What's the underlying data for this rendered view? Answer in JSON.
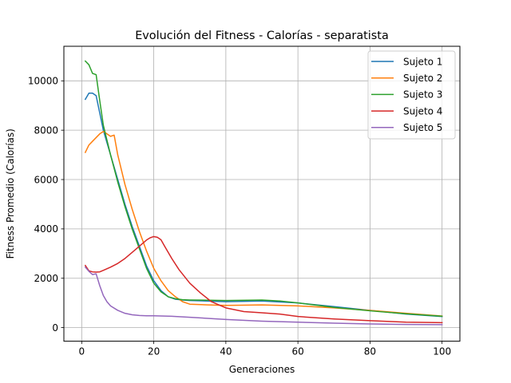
{
  "chart_data": {
    "type": "line",
    "title": "Evolución del Fitness - Calorías - separatista",
    "xlabel": "Generaciones",
    "ylabel": "Fitness Promedio (Calorías)",
    "xlim": [
      -4.95,
      104.95
    ],
    "ylim": [
      -550,
      11400
    ],
    "xticks": [
      0,
      20,
      40,
      60,
      80,
      100
    ],
    "yticks": [
      0,
      2000,
      4000,
      6000,
      8000,
      10000
    ],
    "grid": true,
    "legend_position": "top-right",
    "series": [
      {
        "name": "Sujeto 1",
        "color": "#1f77b4",
        "points": [
          [
            1,
            9250
          ],
          [
            2,
            9500
          ],
          [
            3,
            9500
          ],
          [
            4,
            9400
          ],
          [
            5,
            8700
          ],
          [
            6,
            8000
          ],
          [
            7,
            7500
          ],
          [
            8,
            7000
          ],
          [
            10,
            6000
          ],
          [
            12,
            5000
          ],
          [
            14,
            4100
          ],
          [
            16,
            3300
          ],
          [
            18,
            2500
          ],
          [
            20,
            1900
          ],
          [
            22,
            1500
          ],
          [
            24,
            1250
          ],
          [
            26,
            1150
          ],
          [
            28,
            1120
          ],
          [
            30,
            1100
          ],
          [
            40,
            1050
          ],
          [
            50,
            1080
          ],
          [
            60,
            1000
          ],
          [
            70,
            850
          ],
          [
            80,
            700
          ],
          [
            90,
            550
          ],
          [
            100,
            450
          ]
        ]
      },
      {
        "name": "Sujeto 2",
        "color": "#ff7f0e",
        "points": [
          [
            1,
            7100
          ],
          [
            2,
            7400
          ],
          [
            3,
            7550
          ],
          [
            4,
            7700
          ],
          [
            5,
            7850
          ],
          [
            6,
            7950
          ],
          [
            7,
            7850
          ],
          [
            8,
            7750
          ],
          [
            9,
            7800
          ],
          [
            10,
            7000
          ],
          [
            12,
            5800
          ],
          [
            14,
            4800
          ],
          [
            16,
            3900
          ],
          [
            18,
            3100
          ],
          [
            20,
            2400
          ],
          [
            22,
            1900
          ],
          [
            24,
            1500
          ],
          [
            26,
            1250
          ],
          [
            28,
            1050
          ],
          [
            30,
            950
          ],
          [
            35,
            920
          ],
          [
            40,
            900
          ],
          [
            50,
            920
          ],
          [
            60,
            880
          ],
          [
            70,
            800
          ],
          [
            80,
            700
          ],
          [
            90,
            580
          ],
          [
            100,
            470
          ]
        ]
      },
      {
        "name": "Sujeto 3",
        "color": "#2ca02c",
        "points": [
          [
            1,
            10800
          ],
          [
            2,
            10650
          ],
          [
            3,
            10300
          ],
          [
            4,
            10250
          ],
          [
            5,
            9200
          ],
          [
            6,
            8200
          ],
          [
            7,
            7600
          ],
          [
            8,
            7000
          ],
          [
            10,
            5900
          ],
          [
            12,
            4900
          ],
          [
            14,
            4000
          ],
          [
            16,
            3200
          ],
          [
            18,
            2400
          ],
          [
            20,
            1800
          ],
          [
            22,
            1450
          ],
          [
            24,
            1250
          ],
          [
            26,
            1170
          ],
          [
            28,
            1130
          ],
          [
            30,
            1120
          ],
          [
            40,
            1100
          ],
          [
            50,
            1120
          ],
          [
            55,
            1080
          ],
          [
            60,
            1000
          ],
          [
            70,
            820
          ],
          [
            80,
            680
          ],
          [
            90,
            560
          ],
          [
            100,
            460
          ]
        ]
      },
      {
        "name": "Sujeto 4",
        "color": "#d62728",
        "points": [
          [
            1,
            2520
          ],
          [
            2,
            2300
          ],
          [
            3,
            2260
          ],
          [
            4,
            2250
          ],
          [
            5,
            2260
          ],
          [
            6,
            2320
          ],
          [
            8,
            2450
          ],
          [
            10,
            2600
          ],
          [
            12,
            2800
          ],
          [
            14,
            3050
          ],
          [
            16,
            3300
          ],
          [
            18,
            3550
          ],
          [
            19,
            3640
          ],
          [
            20,
            3690
          ],
          [
            21,
            3660
          ],
          [
            22,
            3560
          ],
          [
            23,
            3300
          ],
          [
            25,
            2800
          ],
          [
            27,
            2350
          ],
          [
            30,
            1800
          ],
          [
            33,
            1400
          ],
          [
            36,
            1050
          ],
          [
            40,
            800
          ],
          [
            45,
            650
          ],
          [
            50,
            600
          ],
          [
            55,
            550
          ],
          [
            60,
            450
          ],
          [
            70,
            350
          ],
          [
            80,
            280
          ],
          [
            90,
            220
          ],
          [
            100,
            200
          ]
        ]
      },
      {
        "name": "Sujeto 5",
        "color": "#9467bd",
        "points": [
          [
            1,
            2450
          ],
          [
            2,
            2280
          ],
          [
            3,
            2150
          ],
          [
            4,
            2180
          ],
          [
            5,
            1700
          ],
          [
            6,
            1300
          ],
          [
            7,
            1050
          ],
          [
            8,
            880
          ],
          [
            10,
            700
          ],
          [
            12,
            580
          ],
          [
            14,
            520
          ],
          [
            16,
            490
          ],
          [
            18,
            480
          ],
          [
            20,
            480
          ],
          [
            25,
            460
          ],
          [
            30,
            420
          ],
          [
            40,
            330
          ],
          [
            50,
            260
          ],
          [
            60,
            220
          ],
          [
            70,
            180
          ],
          [
            80,
            150
          ],
          [
            90,
            130
          ],
          [
            100,
            120
          ]
        ]
      }
    ]
  }
}
